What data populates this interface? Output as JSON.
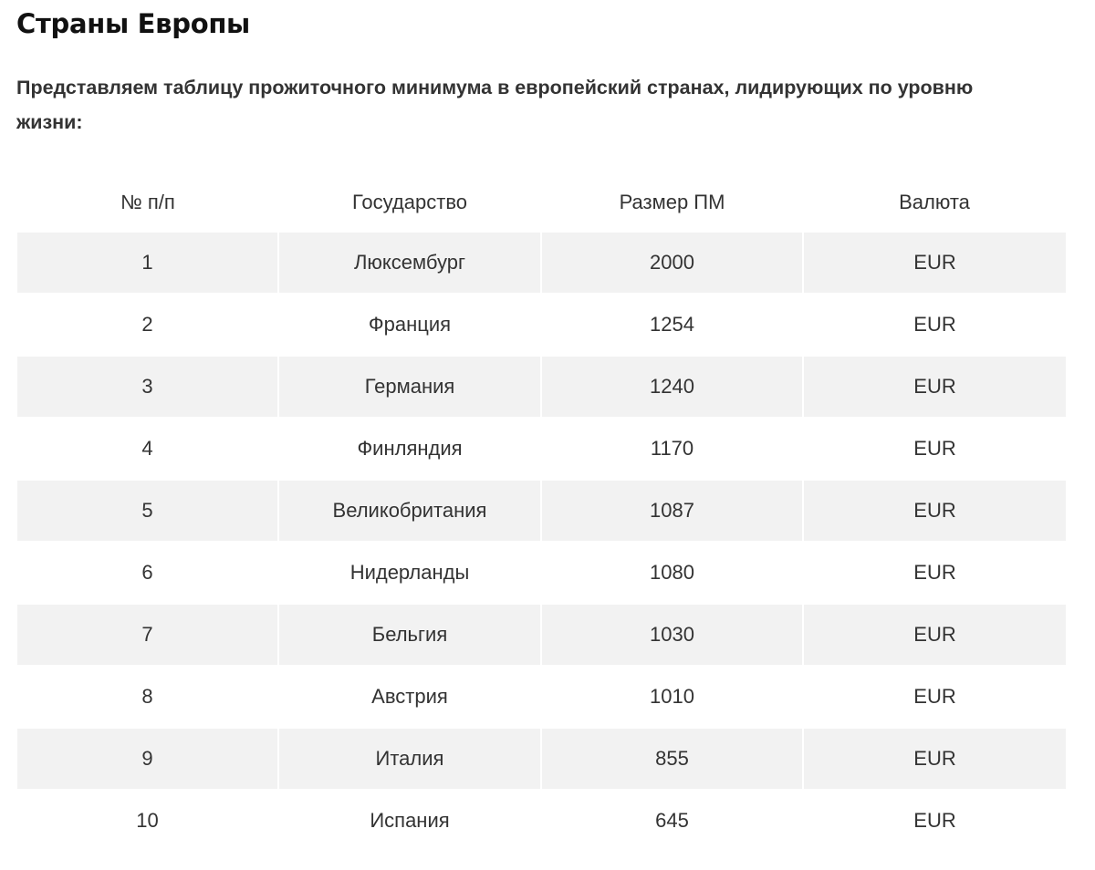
{
  "title": "Страны Европы",
  "intro": "Представляем таблицу прожиточного минимума в европейский странах, лидирующих по уровню жизни:",
  "table": {
    "headers": [
      "№ п/п",
      "Государство",
      "Размер ПМ",
      "Валюта"
    ],
    "rows": [
      [
        "1",
        "Люксембург",
        "2000",
        "EUR"
      ],
      [
        "2",
        "Франция",
        "1254",
        "EUR"
      ],
      [
        "3",
        "Германия",
        "1240",
        "EUR"
      ],
      [
        "4",
        "Финляндия",
        "1170",
        "EUR"
      ],
      [
        "5",
        "Великобритания",
        "1087",
        "EUR"
      ],
      [
        "6",
        "Нидерланды",
        "1080",
        "EUR"
      ],
      [
        "7",
        "Бельгия",
        "1030",
        "EUR"
      ],
      [
        "8",
        "Австрия",
        "1010",
        "EUR"
      ],
      [
        "9",
        "Италия",
        "855",
        "EUR"
      ],
      [
        "10",
        "Испания",
        "645",
        "EUR"
      ]
    ]
  }
}
